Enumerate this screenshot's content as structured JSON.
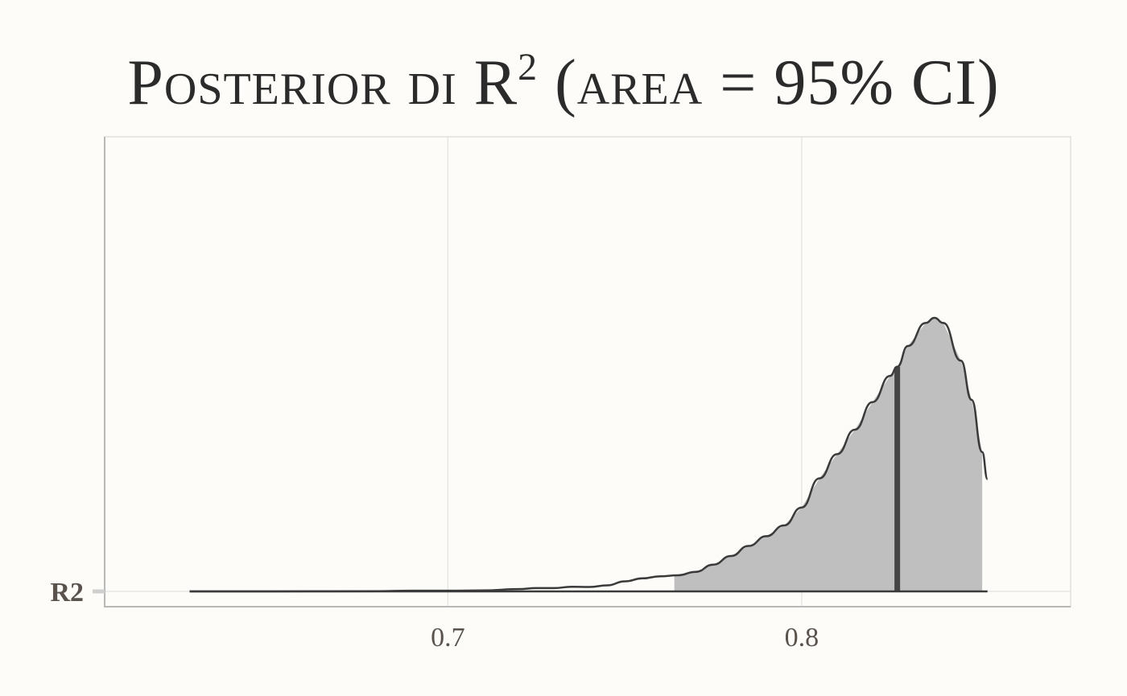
{
  "chart_data": {
    "type": "area",
    "title_main": "Posterior di R",
    "title_sup": "2",
    "title_rest": " (area = 95% CI)",
    "xlabel": "",
    "ylabel": "",
    "y_categories": [
      "R2"
    ],
    "x_ticks": [
      "0.7",
      "0.8"
    ],
    "xlim": [
      0.603,
      0.876
    ],
    "grid": true,
    "ci_95": [
      0.764,
      0.851
    ],
    "point_estimate": 0.827,
    "density": {
      "x": [
        0.627,
        0.65,
        0.68,
        0.69,
        0.7,
        0.71,
        0.72,
        0.725,
        0.73,
        0.735,
        0.74,
        0.745,
        0.75,
        0.755,
        0.76,
        0.765,
        0.77,
        0.775,
        0.78,
        0.785,
        0.79,
        0.795,
        0.8,
        0.805,
        0.81,
        0.815,
        0.82,
        0.825,
        0.827,
        0.83,
        0.835,
        0.8375,
        0.84,
        0.845,
        0.848,
        0.851,
        0.8525
      ],
      "y": [
        0.0,
        0.0,
        0.001,
        0.003,
        0.003,
        0.004,
        0.01,
        0.014,
        0.014,
        0.02,
        0.019,
        0.026,
        0.043,
        0.056,
        0.065,
        0.069,
        0.084,
        0.115,
        0.152,
        0.195,
        0.237,
        0.283,
        0.36,
        0.485,
        0.589,
        0.694,
        0.812,
        0.925,
        0.964,
        1.053,
        1.152,
        1.174,
        1.152,
        0.99,
        0.822,
        0.598,
        0.482
      ]
    }
  },
  "colors": {
    "background": "#fdfcf9",
    "panel_border": "#cfcfcf",
    "grid": "#e2e2e2",
    "fill": "#bfbfbf",
    "line": "#3a3a3a",
    "estimate": "#454545",
    "tick_text": "#5a524c",
    "title": "#2b2b2b"
  }
}
